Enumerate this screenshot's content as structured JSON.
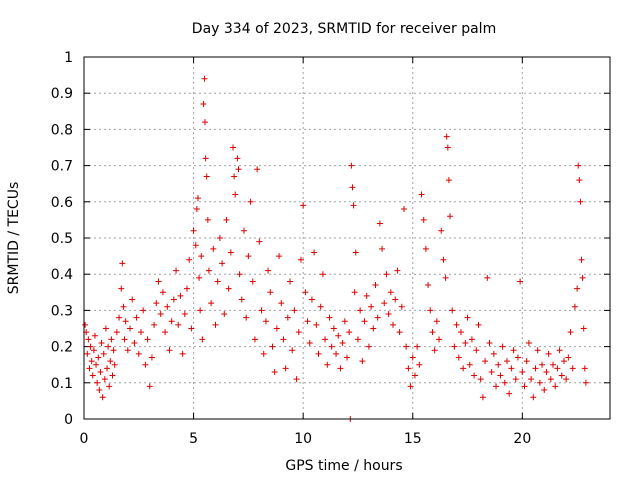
{
  "chart_data": {
    "type": "scatter",
    "title": "Day 334 of 2023, SRMTID for receiver palm",
    "xlabel": "GPS time / hours",
    "ylabel": "SRMTID / TECUs",
    "xlim": [
      0,
      24
    ],
    "ylim": [
      0,
      1
    ],
    "xticks": [
      0,
      5,
      10,
      15,
      20
    ],
    "xtick_labels": [
      "0",
      "5",
      "10",
      "15",
      "20"
    ],
    "yticks": [
      0,
      0.1,
      0.2,
      0.3,
      0.4,
      0.5,
      0.6,
      0.7,
      0.8,
      0.9,
      1
    ],
    "ytick_labels": [
      "0",
      "0.1",
      "0.2",
      "0.3",
      "0.4",
      "0.5",
      "0.6",
      "0.7",
      "0.8",
      "0.9",
      "1"
    ],
    "grid": true,
    "marker": "plus",
    "color": "#e00000",
    "series": [
      {
        "name": "SRMTID",
        "points": [
          [
            0.05,
            0.26
          ],
          [
            0.1,
            0.24
          ],
          [
            0.15,
            0.18
          ],
          [
            0.2,
            0.22
          ],
          [
            0.25,
            0.14
          ],
          [
            0.3,
            0.2
          ],
          [
            0.35,
            0.16
          ],
          [
            0.4,
            0.12
          ],
          [
            0.45,
            0.19
          ],
          [
            0.5,
            0.23
          ],
          [
            0.55,
            0.15
          ],
          [
            0.6,
            0.1
          ],
          [
            0.65,
            0.17
          ],
          [
            0.7,
            0.08
          ],
          [
            0.75,
            0.13
          ],
          [
            0.8,
            0.21
          ],
          [
            0.85,
            0.06
          ],
          [
            0.9,
            0.18
          ],
          [
            0.95,
            0.11
          ],
          [
            1.0,
            0.25
          ],
          [
            1.05,
            0.14
          ],
          [
            1.1,
            0.2
          ],
          [
            1.15,
            0.09
          ],
          [
            1.2,
            0.16
          ],
          [
            1.25,
            0.22
          ],
          [
            1.3,
            0.12
          ],
          [
            1.35,
            0.19
          ],
          [
            1.4,
            0.15
          ],
          [
            1.5,
            0.24
          ],
          [
            1.6,
            0.28
          ],
          [
            1.7,
            0.36
          ],
          [
            1.75,
            0.43
          ],
          [
            1.8,
            0.31
          ],
          [
            1.85,
            0.22
          ],
          [
            1.9,
            0.27
          ],
          [
            2.0,
            0.19
          ],
          [
            2.1,
            0.25
          ],
          [
            2.2,
            0.33
          ],
          [
            2.3,
            0.21
          ],
          [
            2.4,
            0.28
          ],
          [
            2.5,
            0.18
          ],
          [
            2.6,
            0.24
          ],
          [
            2.7,
            0.3
          ],
          [
            2.8,
            0.15
          ],
          [
            2.9,
            0.22
          ],
          [
            3.0,
            0.09
          ],
          [
            3.1,
            0.17
          ],
          [
            3.2,
            0.26
          ],
          [
            3.3,
            0.32
          ],
          [
            3.4,
            0.38
          ],
          [
            3.5,
            0.29
          ],
          [
            3.6,
            0.35
          ],
          [
            3.7,
            0.24
          ],
          [
            3.8,
            0.31
          ],
          [
            3.9,
            0.19
          ],
          [
            4.0,
            0.27
          ],
          [
            4.1,
            0.33
          ],
          [
            4.2,
            0.41
          ],
          [
            4.3,
            0.26
          ],
          [
            4.4,
            0.34
          ],
          [
            4.5,
            0.18
          ],
          [
            4.6,
            0.29
          ],
          [
            4.7,
            0.36
          ],
          [
            4.8,
            0.44
          ],
          [
            4.9,
            0.25
          ],
          [
            5.0,
            0.52
          ],
          [
            5.1,
            0.48
          ],
          [
            5.15,
            0.58
          ],
          [
            5.2,
            0.61
          ],
          [
            5.25,
            0.39
          ],
          [
            5.3,
            0.3
          ],
          [
            5.35,
            0.45
          ],
          [
            5.4,
            0.22
          ],
          [
            5.45,
            0.87
          ],
          [
            5.5,
            0.94
          ],
          [
            5.52,
            0.82
          ],
          [
            5.55,
            0.72
          ],
          [
            5.6,
            0.67
          ],
          [
            5.65,
            0.55
          ],
          [
            5.7,
            0.41
          ],
          [
            5.8,
            0.32
          ],
          [
            5.9,
            0.47
          ],
          [
            6.0,
            0.26
          ],
          [
            6.1,
            0.38
          ],
          [
            6.2,
            0.5
          ],
          [
            6.3,
            0.43
          ],
          [
            6.4,
            0.29
          ],
          [
            6.5,
            0.55
          ],
          [
            6.6,
            0.36
          ],
          [
            6.7,
            0.46
          ],
          [
            6.8,
            0.75
          ],
          [
            6.85,
            0.67
          ],
          [
            6.9,
            0.62
          ],
          [
            7.0,
            0.72
          ],
          [
            7.05,
            0.69
          ],
          [
            7.1,
            0.4
          ],
          [
            7.2,
            0.33
          ],
          [
            7.3,
            0.52
          ],
          [
            7.4,
            0.28
          ],
          [
            7.5,
            0.45
          ],
          [
            7.6,
            0.6
          ],
          [
            7.7,
            0.38
          ],
          [
            7.8,
            0.22
          ],
          [
            7.9,
            0.69
          ],
          [
            8.0,
            0.49
          ],
          [
            8.1,
            0.3
          ],
          [
            8.2,
            0.18
          ],
          [
            8.3,
            0.27
          ],
          [
            8.4,
            0.41
          ],
          [
            8.5,
            0.35
          ],
          [
            8.6,
            0.2
          ],
          [
            8.7,
            0.13
          ],
          [
            8.8,
            0.25
          ],
          [
            8.9,
            0.45
          ],
          [
            9.0,
            0.32
          ],
          [
            9.1,
            0.22
          ],
          [
            9.2,
            0.14
          ],
          [
            9.3,
            0.28
          ],
          [
            9.4,
            0.38
          ],
          [
            9.5,
            0.19
          ],
          [
            9.6,
            0.3
          ],
          [
            9.7,
            0.11
          ],
          [
            9.8,
            0.24
          ],
          [
            9.9,
            0.44
          ],
          [
            10.0,
            0.59
          ],
          [
            10.1,
            0.35
          ],
          [
            10.2,
            0.27
          ],
          [
            10.3,
            0.21
          ],
          [
            10.4,
            0.33
          ],
          [
            10.5,
            0.46
          ],
          [
            10.6,
            0.26
          ],
          [
            10.7,
            0.18
          ],
          [
            10.8,
            0.31
          ],
          [
            10.9,
            0.4
          ],
          [
            11.0,
            0.22
          ],
          [
            11.1,
            0.15
          ],
          [
            11.2,
            0.28
          ],
          [
            11.3,
            0.2
          ],
          [
            11.4,
            0.25
          ],
          [
            11.5,
            0.18
          ],
          [
            11.6,
            0.23
          ],
          [
            11.7,
            0.14
          ],
          [
            11.8,
            0.21
          ],
          [
            11.9,
            0.27
          ],
          [
            12.0,
            0.17
          ],
          [
            12.1,
            0.24
          ],
          [
            12.15,
            0.0
          ],
          [
            12.2,
            0.7
          ],
          [
            12.25,
            0.64
          ],
          [
            12.3,
            0.59
          ],
          [
            12.35,
            0.35
          ],
          [
            12.4,
            0.46
          ],
          [
            12.5,
            0.22
          ],
          [
            12.6,
            0.3
          ],
          [
            12.7,
            0.16
          ],
          [
            12.8,
            0.27
          ],
          [
            12.9,
            0.34
          ],
          [
            13.0,
            0.2
          ],
          [
            13.1,
            0.31
          ],
          [
            13.2,
            0.25
          ],
          [
            13.3,
            0.37
          ],
          [
            13.4,
            0.28
          ],
          [
            13.5,
            0.54
          ],
          [
            13.6,
            0.47
          ],
          [
            13.7,
            0.32
          ],
          [
            13.8,
            0.4
          ],
          [
            13.9,
            0.29
          ],
          [
            14.0,
            0.35
          ],
          [
            14.1,
            0.26
          ],
          [
            14.2,
            0.33
          ],
          [
            14.3,
            0.41
          ],
          [
            14.4,
            0.24
          ],
          [
            14.5,
            0.31
          ],
          [
            14.6,
            0.58
          ],
          [
            14.7,
            0.2
          ],
          [
            14.8,
            0.14
          ],
          [
            14.9,
            0.09
          ],
          [
            15.0,
            0.17
          ],
          [
            15.1,
            0.12
          ],
          [
            15.2,
            0.2
          ],
          [
            15.3,
            0.15
          ],
          [
            15.4,
            0.62
          ],
          [
            15.5,
            0.55
          ],
          [
            15.6,
            0.47
          ],
          [
            15.7,
            0.37
          ],
          [
            15.8,
            0.3
          ],
          [
            15.9,
            0.24
          ],
          [
            16.0,
            0.19
          ],
          [
            16.1,
            0.27
          ],
          [
            16.2,
            0.22
          ],
          [
            16.3,
            0.52
          ],
          [
            16.4,
            0.44
          ],
          [
            16.5,
            0.39
          ],
          [
            16.55,
            0.78
          ],
          [
            16.6,
            0.75
          ],
          [
            16.65,
            0.66
          ],
          [
            16.7,
            0.56
          ],
          [
            16.8,
            0.3
          ],
          [
            16.9,
            0.2
          ],
          [
            17.0,
            0.26
          ],
          [
            17.1,
            0.17
          ],
          [
            17.2,
            0.24
          ],
          [
            17.3,
            0.14
          ],
          [
            17.4,
            0.21
          ],
          [
            17.5,
            0.28
          ],
          [
            17.6,
            0.15
          ],
          [
            17.7,
            0.22
          ],
          [
            17.8,
            0.12
          ],
          [
            17.9,
            0.19
          ],
          [
            18.0,
            0.26
          ],
          [
            18.1,
            0.11
          ],
          [
            18.2,
            0.06
          ],
          [
            18.3,
            0.16
          ],
          [
            18.4,
            0.39
          ],
          [
            18.5,
            0.21
          ],
          [
            18.6,
            0.13
          ],
          [
            18.7,
            0.18
          ],
          [
            18.8,
            0.09
          ],
          [
            18.9,
            0.15
          ],
          [
            19.0,
            0.12
          ],
          [
            19.1,
            0.2
          ],
          [
            19.2,
            0.1
          ],
          [
            19.3,
            0.16
          ],
          [
            19.4,
            0.07
          ],
          [
            19.5,
            0.14
          ],
          [
            19.6,
            0.19
          ],
          [
            19.7,
            0.11
          ],
          [
            19.8,
            0.17
          ],
          [
            19.9,
            0.38
          ],
          [
            20.0,
            0.13
          ],
          [
            20.1,
            0.09
          ],
          [
            20.2,
            0.16
          ],
          [
            20.3,
            0.21
          ],
          [
            20.4,
            0.11
          ],
          [
            20.5,
            0.06
          ],
          [
            20.6,
            0.14
          ],
          [
            20.7,
            0.19
          ],
          [
            20.8,
            0.1
          ],
          [
            20.9,
            0.15
          ],
          [
            21.0,
            0.08
          ],
          [
            21.1,
            0.13
          ],
          [
            21.2,
            0.18
          ],
          [
            21.3,
            0.11
          ],
          [
            21.4,
            0.15
          ],
          [
            21.5,
            0.09
          ],
          [
            21.6,
            0.14
          ],
          [
            21.7,
            0.19
          ],
          [
            21.8,
            0.12
          ],
          [
            21.9,
            0.16
          ],
          [
            22.0,
            0.11
          ],
          [
            22.1,
            0.17
          ],
          [
            22.2,
            0.24
          ],
          [
            22.3,
            0.14
          ],
          [
            22.4,
            0.31
          ],
          [
            22.5,
            0.36
          ],
          [
            22.55,
            0.7
          ],
          [
            22.6,
            0.66
          ],
          [
            22.65,
            0.6
          ],
          [
            22.7,
            0.44
          ],
          [
            22.75,
            0.39
          ],
          [
            22.8,
            0.25
          ],
          [
            22.85,
            0.14
          ],
          [
            22.9,
            0.1
          ]
        ]
      }
    ]
  }
}
